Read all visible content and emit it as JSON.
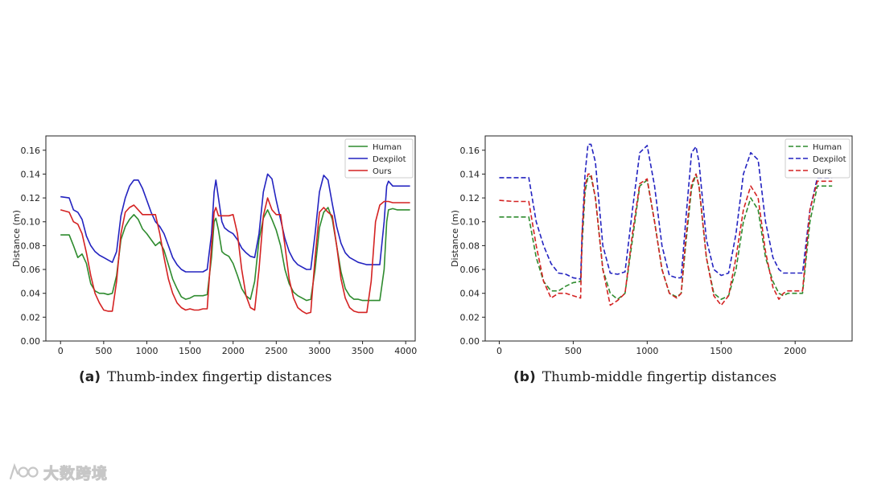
{
  "chart_data": [
    {
      "id": "a",
      "type": "line",
      "title": "",
      "xlabel": "",
      "ylabel": "Distance (m)",
      "xlim": [
        -170,
        4110
      ],
      "ylim": [
        0.0,
        0.172
      ],
      "xticks": [
        0,
        500,
        1000,
        1500,
        2000,
        2500,
        3000,
        3500,
        4000
      ],
      "yticks": [
        0.0,
        0.02,
        0.04,
        0.06,
        0.08,
        0.1,
        0.12,
        0.14,
        0.16
      ],
      "ytick_labels": [
        "0.00",
        "0.02",
        "0.04",
        "0.06",
        "0.08",
        "0.10",
        "0.12",
        "0.14",
        "0.16"
      ],
      "legend": "top-right",
      "series": [
        {
          "name": "Human",
          "color": "#2e8b2e",
          "dash": "solid",
          "x": [
            0,
            100,
            150,
            200,
            250,
            300,
            350,
            400,
            450,
            500,
            550,
            600,
            650,
            700,
            750,
            800,
            850,
            900,
            950,
            1000,
            1050,
            1100,
            1150,
            1200,
            1250,
            1300,
            1350,
            1400,
            1450,
            1500,
            1550,
            1600,
            1650,
            1700,
            1750,
            1780,
            1800,
            1830,
            1870,
            1900,
            1950,
            2000,
            2050,
            2100,
            2150,
            2200,
            2250,
            2300,
            2350,
            2400,
            2450,
            2500,
            2550,
            2600,
            2650,
            2700,
            2750,
            2800,
            2850,
            2900,
            2950,
            3000,
            3050,
            3100,
            3150,
            3200,
            3250,
            3300,
            3350,
            3400,
            3450,
            3500,
            3550,
            3600,
            3650,
            3700,
            3750,
            3780,
            3800,
            3850,
            3900,
            3950,
            4000,
            4050
          ],
          "y": [
            0.089,
            0.089,
            0.08,
            0.07,
            0.073,
            0.065,
            0.048,
            0.042,
            0.04,
            0.04,
            0.039,
            0.04,
            0.055,
            0.085,
            0.096,
            0.102,
            0.106,
            0.102,
            0.094,
            0.09,
            0.085,
            0.08,
            0.083,
            0.076,
            0.064,
            0.052,
            0.044,
            0.037,
            0.035,
            0.036,
            0.038,
            0.038,
            0.038,
            0.039,
            0.07,
            0.1,
            0.103,
            0.093,
            0.075,
            0.073,
            0.071,
            0.065,
            0.055,
            0.044,
            0.038,
            0.035,
            0.05,
            0.085,
            0.103,
            0.11,
            0.102,
            0.093,
            0.08,
            0.06,
            0.048,
            0.041,
            0.038,
            0.036,
            0.034,
            0.035,
            0.06,
            0.095,
            0.108,
            0.112,
            0.102,
            0.08,
            0.058,
            0.044,
            0.038,
            0.035,
            0.035,
            0.034,
            0.034,
            0.034,
            0.034,
            0.034,
            0.06,
            0.1,
            0.11,
            0.111,
            0.11,
            0.11,
            0.11,
            0.11
          ]
        },
        {
          "name": "Dexpilot",
          "color": "#2323c0",
          "dash": "solid",
          "x": [
            0,
            100,
            150,
            200,
            250,
            300,
            350,
            400,
            450,
            500,
            550,
            600,
            650,
            700,
            750,
            800,
            850,
            900,
            950,
            1000,
            1050,
            1100,
            1150,
            1200,
            1250,
            1300,
            1350,
            1400,
            1450,
            1500,
            1550,
            1600,
            1650,
            1700,
            1750,
            1780,
            1800,
            1830,
            1870,
            1900,
            1950,
            2000,
            2050,
            2100,
            2150,
            2200,
            2250,
            2300,
            2350,
            2400,
            2450,
            2500,
            2550,
            2600,
            2650,
            2700,
            2750,
            2800,
            2850,
            2900,
            2950,
            3000,
            3050,
            3100,
            3150,
            3200,
            3250,
            3300,
            3350,
            3400,
            3450,
            3500,
            3550,
            3600,
            3650,
            3700,
            3750,
            3780,
            3800,
            3850,
            3900,
            3950,
            4000,
            4050
          ],
          "y": [
            0.121,
            0.12,
            0.11,
            0.108,
            0.102,
            0.088,
            0.08,
            0.075,
            0.072,
            0.07,
            0.068,
            0.066,
            0.075,
            0.105,
            0.12,
            0.13,
            0.135,
            0.135,
            0.128,
            0.118,
            0.108,
            0.1,
            0.096,
            0.09,
            0.08,
            0.07,
            0.064,
            0.06,
            0.058,
            0.058,
            0.058,
            0.058,
            0.058,
            0.06,
            0.09,
            0.125,
            0.135,
            0.12,
            0.1,
            0.095,
            0.092,
            0.09,
            0.085,
            0.078,
            0.074,
            0.071,
            0.07,
            0.09,
            0.125,
            0.14,
            0.136,
            0.118,
            0.102,
            0.086,
            0.075,
            0.068,
            0.064,
            0.062,
            0.06,
            0.06,
            0.09,
            0.125,
            0.139,
            0.135,
            0.115,
            0.096,
            0.082,
            0.074,
            0.07,
            0.068,
            0.066,
            0.065,
            0.064,
            0.064,
            0.064,
            0.064,
            0.1,
            0.13,
            0.134,
            0.13,
            0.13,
            0.13,
            0.13,
            0.13
          ]
        },
        {
          "name": "Ours",
          "color": "#d42222",
          "dash": "solid",
          "x": [
            0,
            100,
            150,
            200,
            250,
            300,
            350,
            400,
            450,
            500,
            550,
            600,
            650,
            700,
            750,
            800,
            850,
            900,
            950,
            1000,
            1050,
            1100,
            1150,
            1200,
            1250,
            1300,
            1350,
            1400,
            1450,
            1500,
            1550,
            1600,
            1650,
            1700,
            1750,
            1780,
            1800,
            1830,
            1870,
            1900,
            1950,
            2000,
            2050,
            2100,
            2150,
            2200,
            2250,
            2300,
            2350,
            2400,
            2450,
            2500,
            2550,
            2600,
            2650,
            2700,
            2750,
            2800,
            2850,
            2900,
            2950,
            3000,
            3050,
            3100,
            3150,
            3200,
            3250,
            3300,
            3350,
            3400,
            3450,
            3500,
            3550,
            3600,
            3650,
            3700,
            3750,
            3780,
            3800,
            3850,
            3900,
            3950,
            4000,
            4050
          ],
          "y": [
            0.11,
            0.108,
            0.1,
            0.098,
            0.09,
            0.074,
            0.055,
            0.04,
            0.032,
            0.026,
            0.025,
            0.025,
            0.05,
            0.09,
            0.108,
            0.112,
            0.114,
            0.11,
            0.106,
            0.106,
            0.106,
            0.106,
            0.09,
            0.07,
            0.052,
            0.04,
            0.032,
            0.028,
            0.026,
            0.027,
            0.026,
            0.026,
            0.027,
            0.027,
            0.08,
            0.108,
            0.112,
            0.105,
            0.105,
            0.105,
            0.105,
            0.106,
            0.09,
            0.06,
            0.038,
            0.028,
            0.026,
            0.06,
            0.105,
            0.12,
            0.11,
            0.106,
            0.106,
            0.08,
            0.052,
            0.036,
            0.028,
            0.025,
            0.023,
            0.024,
            0.07,
            0.108,
            0.112,
            0.108,
            0.105,
            0.08,
            0.052,
            0.036,
            0.028,
            0.025,
            0.024,
            0.024,
            0.024,
            0.05,
            0.1,
            0.114,
            0.117,
            0.117,
            0.117,
            0.116,
            0.116,
            0.116,
            0.116,
            0.116
          ]
        }
      ],
      "caption_label": "(a)",
      "caption_text": "Thumb-index fingertip distances"
    },
    {
      "id": "b",
      "type": "line",
      "title": "",
      "xlabel": "",
      "ylabel": "Distance (m)",
      "xlim": [
        -95,
        2385
      ],
      "ylim": [
        0.0,
        0.172
      ],
      "xticks": [
        0,
        500,
        1000,
        1500,
        2000
      ],
      "yticks": [
        0.0,
        0.02,
        0.04,
        0.06,
        0.08,
        0.1,
        0.12,
        0.14,
        0.16
      ],
      "ytick_labels": [
        "0.00",
        "0.02",
        "0.04",
        "0.06",
        "0.08",
        "0.10",
        "0.12",
        "0.14",
        "0.16"
      ],
      "legend": "top-right",
      "series": [
        {
          "name": "Human",
          "color": "#2e8b2e",
          "dash": "dashed",
          "x": [
            0,
            100,
            200,
            250,
            300,
            350,
            400,
            450,
            500,
            550,
            560,
            580,
            600,
            620,
            650,
            700,
            750,
            800,
            850,
            900,
            950,
            1000,
            1050,
            1100,
            1150,
            1200,
            1230,
            1260,
            1300,
            1330,
            1350,
            1400,
            1450,
            1500,
            1550,
            1600,
            1650,
            1700,
            1750,
            1800,
            1850,
            1890,
            1920,
            1950,
            2000,
            2050,
            2100,
            2150,
            2250
          ],
          "y": [
            0.104,
            0.104,
            0.104,
            0.07,
            0.05,
            0.042,
            0.042,
            0.046,
            0.049,
            0.05,
            0.08,
            0.125,
            0.138,
            0.138,
            0.12,
            0.06,
            0.04,
            0.035,
            0.04,
            0.085,
            0.13,
            0.135,
            0.1,
            0.06,
            0.04,
            0.037,
            0.04,
            0.08,
            0.128,
            0.14,
            0.13,
            0.07,
            0.04,
            0.035,
            0.038,
            0.06,
            0.1,
            0.12,
            0.11,
            0.07,
            0.05,
            0.04,
            0.038,
            0.04,
            0.04,
            0.04,
            0.1,
            0.13,
            0.13
          ]
        },
        {
          "name": "Dexpilot",
          "color": "#2323c0",
          "dash": "dashed",
          "x": [
            0,
            100,
            200,
            250,
            300,
            350,
            400,
            450,
            500,
            550,
            560,
            580,
            600,
            620,
            650,
            700,
            750,
            800,
            850,
            900,
            950,
            1000,
            1050,
            1100,
            1150,
            1200,
            1230,
            1260,
            1300,
            1330,
            1350,
            1400,
            1450,
            1500,
            1550,
            1600,
            1650,
            1700,
            1750,
            1800,
            1850,
            1890,
            1920,
            1950,
            2000,
            2050,
            2100,
            2150,
            2250
          ],
          "y": [
            0.137,
            0.137,
            0.137,
            0.1,
            0.08,
            0.065,
            0.057,
            0.056,
            0.053,
            0.052,
            0.09,
            0.14,
            0.165,
            0.165,
            0.15,
            0.08,
            0.057,
            0.056,
            0.058,
            0.11,
            0.158,
            0.164,
            0.13,
            0.08,
            0.055,
            0.053,
            0.053,
            0.1,
            0.158,
            0.163,
            0.15,
            0.085,
            0.06,
            0.055,
            0.057,
            0.09,
            0.14,
            0.158,
            0.152,
            0.1,
            0.07,
            0.06,
            0.057,
            0.057,
            0.057,
            0.057,
            0.11,
            0.137,
            0.137
          ]
        },
        {
          "name": "Ours",
          "color": "#d42222",
          "dash": "dashed",
          "x": [
            0,
            100,
            200,
            250,
            300,
            350,
            400,
            450,
            500,
            550,
            560,
            580,
            600,
            620,
            650,
            700,
            750,
            800,
            850,
            900,
            950,
            1000,
            1050,
            1100,
            1150,
            1200,
            1230,
            1260,
            1300,
            1330,
            1350,
            1400,
            1450,
            1500,
            1550,
            1600,
            1650,
            1700,
            1750,
            1800,
            1850,
            1890,
            1920,
            1950,
            2000,
            2050,
            2100,
            2150,
            2250
          ],
          "y": [
            0.118,
            0.117,
            0.117,
            0.08,
            0.05,
            0.036,
            0.04,
            0.04,
            0.038,
            0.036,
            0.09,
            0.13,
            0.14,
            0.14,
            0.12,
            0.06,
            0.03,
            0.034,
            0.04,
            0.09,
            0.132,
            0.136,
            0.1,
            0.06,
            0.04,
            0.036,
            0.04,
            0.085,
            0.132,
            0.14,
            0.13,
            0.07,
            0.038,
            0.03,
            0.038,
            0.07,
            0.11,
            0.13,
            0.12,
            0.075,
            0.045,
            0.035,
            0.04,
            0.042,
            0.042,
            0.042,
            0.11,
            0.134,
            0.134
          ]
        }
      ],
      "caption_label": "(b)",
      "caption_text": "Thumb-middle fingertip distances"
    }
  ],
  "watermark": {
    "text": "大数跨境"
  }
}
